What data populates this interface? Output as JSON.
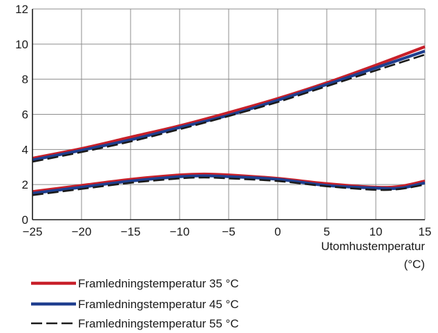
{
  "chart_data": {
    "type": "line",
    "xlabel": "Utomhustemperatur",
    "xlabel_unit": "(°C)",
    "ylabel": "",
    "xlim": [
      -25,
      15
    ],
    "ylim": [
      0,
      12
    ],
    "x_ticks": [
      "−25",
      "−20",
      "−15",
      "−10",
      "−5",
      "0",
      "5",
      "10",
      "15"
    ],
    "y_ticks": [
      "0",
      "2",
      "4",
      "6",
      "8",
      "10",
      "12"
    ],
    "grid": true,
    "legend_position": "bottom",
    "series": [
      {
        "name": "Framledningstemperatur 35 °C",
        "color": "#c8202a",
        "style": "solid",
        "upper": {
          "x": [
            -25,
            -20,
            -15,
            -10,
            -5,
            0,
            5,
            10,
            15
          ],
          "y": [
            3.5,
            4.05,
            4.7,
            5.35,
            6.1,
            6.9,
            7.8,
            8.8,
            9.85
          ]
        },
        "lower": {
          "x": [
            -25,
            -20,
            -15,
            -10,
            -7.5,
            -5,
            0,
            5,
            10,
            12.5,
            15
          ],
          "y": [
            1.6,
            1.95,
            2.3,
            2.55,
            2.6,
            2.55,
            2.35,
            2.05,
            1.85,
            1.9,
            2.2
          ]
        }
      },
      {
        "name": "Framledningstemperatur 45 °C",
        "color": "#1f3f8f",
        "style": "solid",
        "upper": {
          "x": [
            -25,
            -20,
            -15,
            -10,
            -5,
            0,
            5,
            10,
            15
          ],
          "y": [
            3.4,
            3.95,
            4.55,
            5.25,
            5.95,
            6.8,
            7.7,
            8.65,
            9.6
          ]
        },
        "lower": {
          "x": [
            -25,
            -20,
            -15,
            -10,
            -7.5,
            -5,
            0,
            5,
            10,
            12.5,
            15
          ],
          "y": [
            1.5,
            1.85,
            2.2,
            2.45,
            2.5,
            2.45,
            2.3,
            1.95,
            1.8,
            1.8,
            2.1
          ]
        }
      },
      {
        "name": "Framledningstemperatur 55 °C",
        "color": "#1a1a1a",
        "style": "dashed",
        "upper": {
          "x": [
            -25,
            -20,
            -15,
            -10,
            -5,
            0,
            5,
            10,
            15
          ],
          "y": [
            3.3,
            3.85,
            4.45,
            5.15,
            5.9,
            6.7,
            7.6,
            8.5,
            9.4
          ]
        },
        "lower": {
          "x": [
            -25,
            -20,
            -15,
            -10,
            -7.5,
            -5,
            0,
            5,
            10,
            12.5,
            15
          ],
          "y": [
            1.4,
            1.75,
            2.1,
            2.35,
            2.4,
            2.35,
            2.2,
            1.9,
            1.7,
            1.75,
            2.0
          ]
        }
      }
    ]
  }
}
